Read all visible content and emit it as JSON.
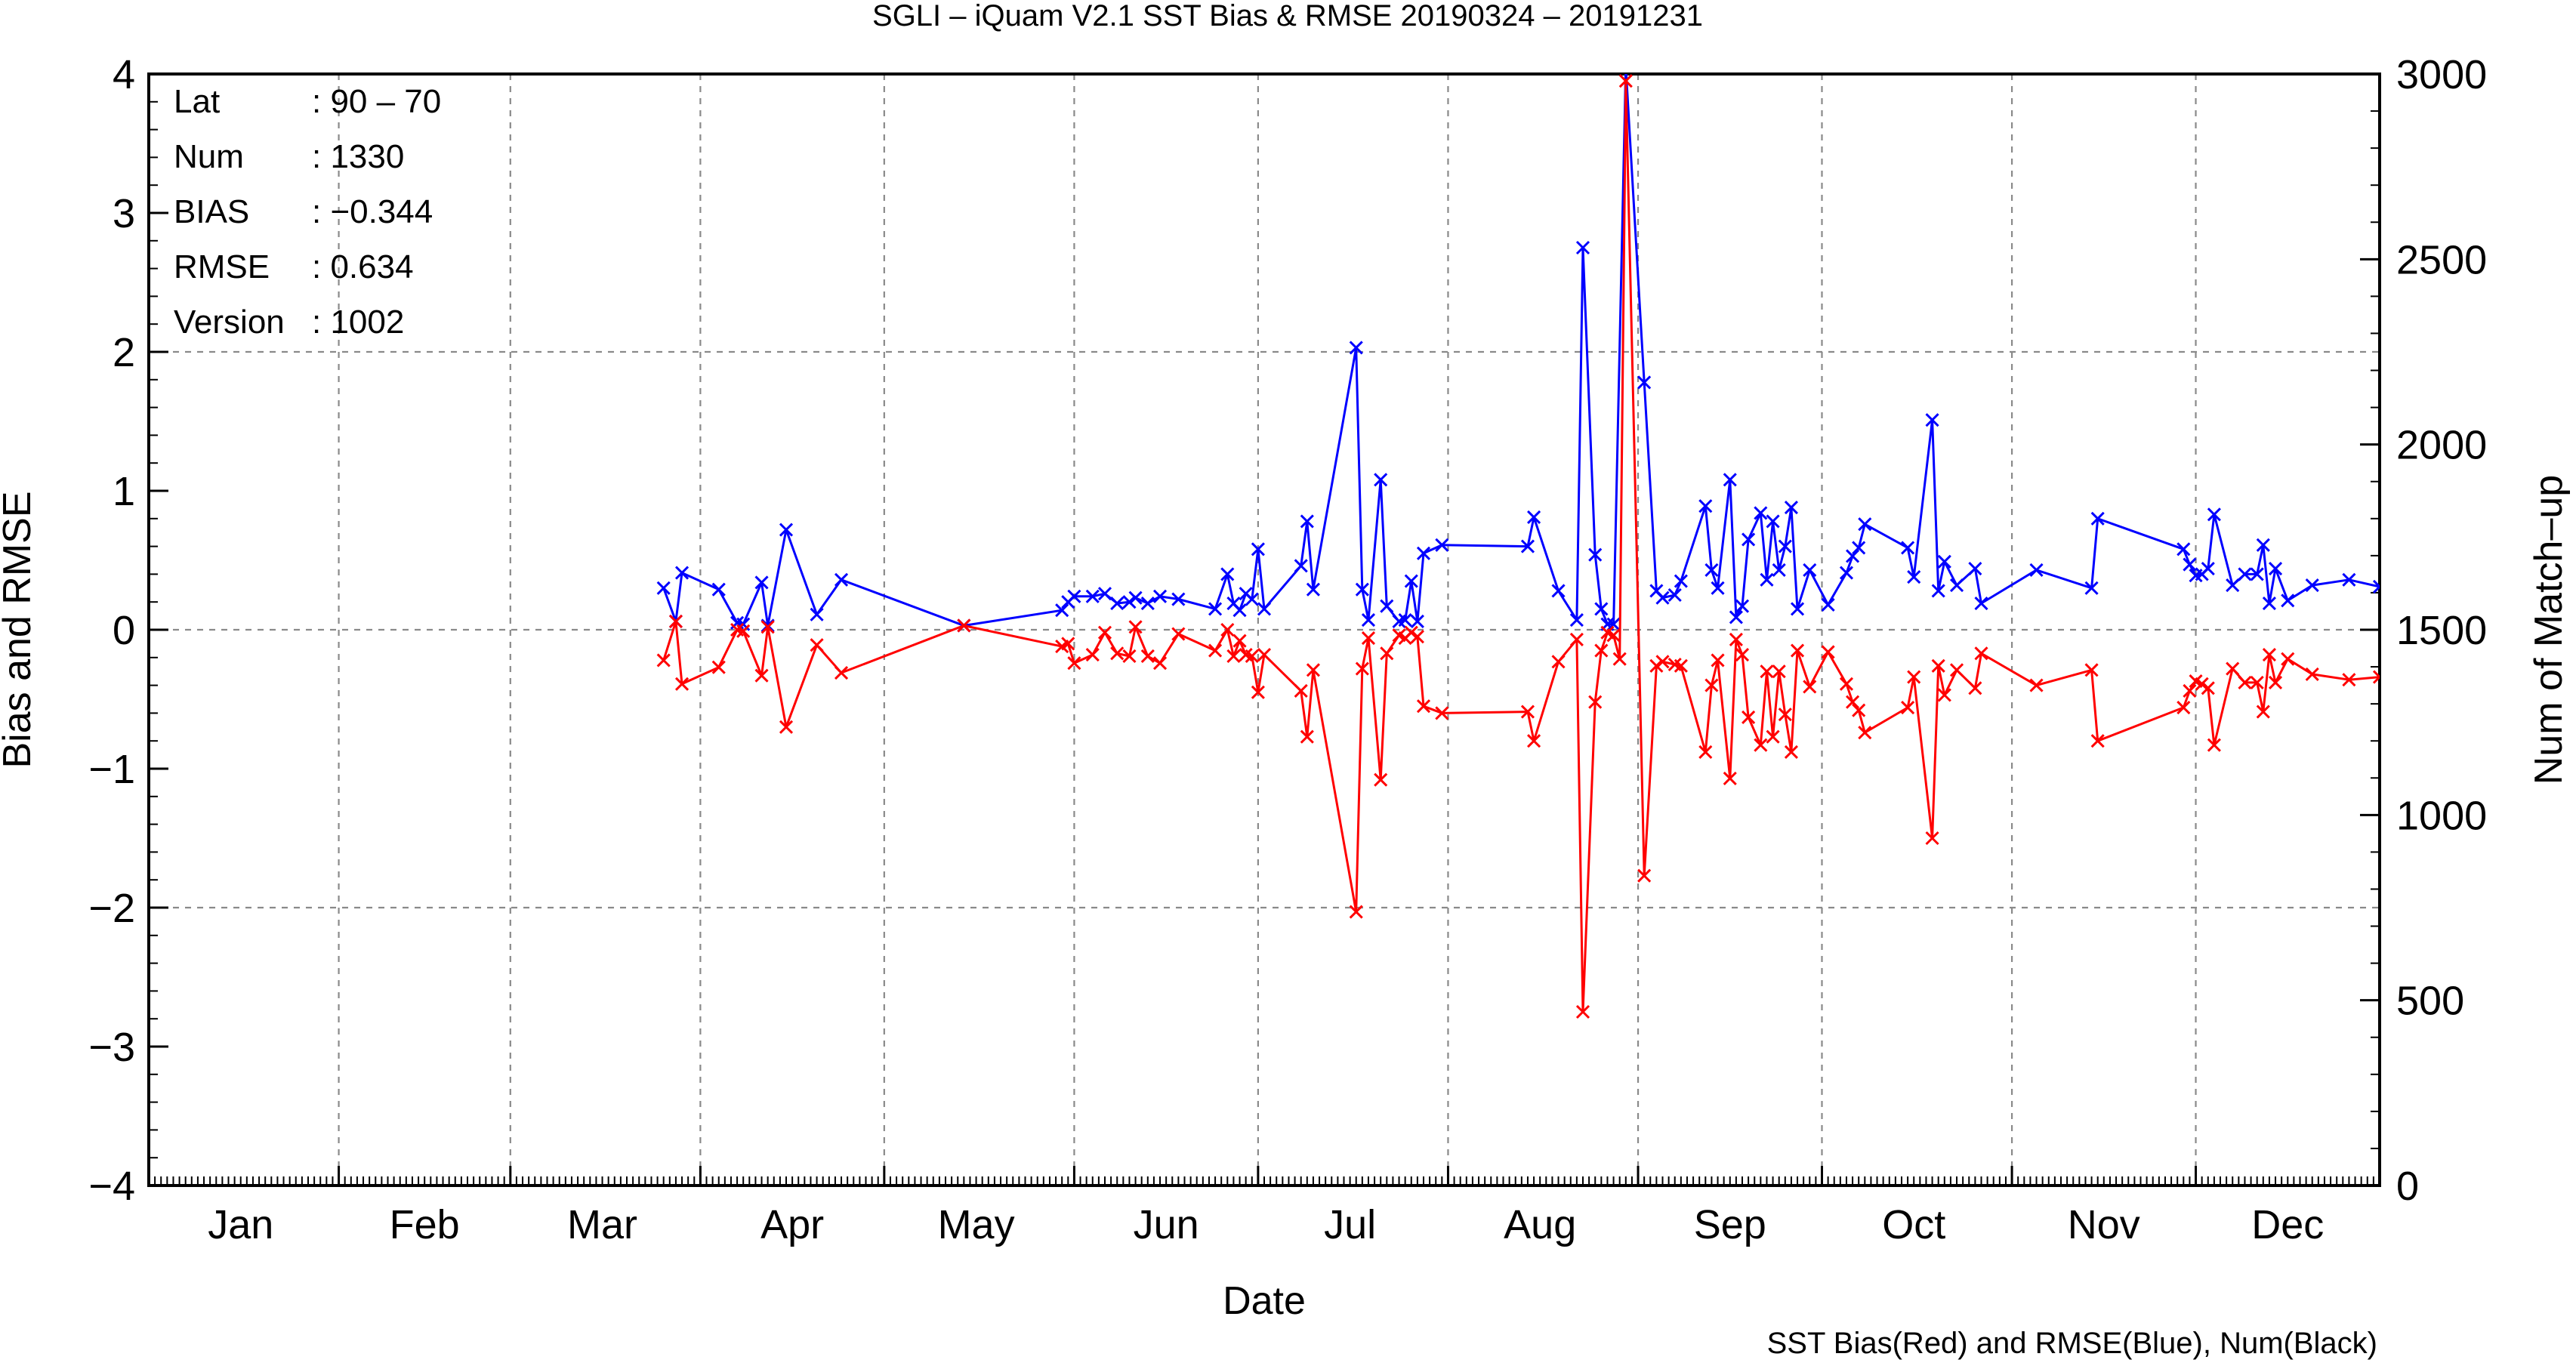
{
  "chart_data": {
    "type": "line",
    "title": "SGLI – iQuam V2.1 SST Bias & RMSE 20190324 – 20191231",
    "xlabel": "Date",
    "ylabel": "Bias and RMSE",
    "y2label": "Num of Match–up",
    "footer": "SST Bias(Red) and RMSE(Blue), Num(Black)",
    "xlim": [
      "2019-01-01",
      "2019-12-31"
    ],
    "ylim": [
      -4,
      4
    ],
    "y2lim": [
      0,
      3000
    ],
    "month_ticks": [
      {
        "date": "2019-01-01",
        "label": ""
      },
      {
        "date": "2019-02-01",
        "label": ""
      },
      {
        "date": "2019-03-01",
        "label": ""
      },
      {
        "date": "2019-04-01",
        "label": ""
      },
      {
        "date": "2019-05-01",
        "label": ""
      },
      {
        "date": "2019-06-01",
        "label": ""
      },
      {
        "date": "2019-07-01",
        "label": ""
      },
      {
        "date": "2019-08-01",
        "label": ""
      },
      {
        "date": "2019-09-01",
        "label": ""
      },
      {
        "date": "2019-10-01",
        "label": ""
      },
      {
        "date": "2019-11-01",
        "label": ""
      },
      {
        "date": "2019-12-01",
        "label": ""
      }
    ],
    "month_labels": [
      {
        "date": "2019-01-16",
        "label": "Jan"
      },
      {
        "date": "2019-02-15",
        "label": "Feb"
      },
      {
        "date": "2019-03-16",
        "label": "Mar"
      },
      {
        "date": "2019-04-16",
        "label": "Apr"
      },
      {
        "date": "2019-05-16",
        "label": "May"
      },
      {
        "date": "2019-06-16",
        "label": "Jun"
      },
      {
        "date": "2019-07-16",
        "label": "Jul"
      },
      {
        "date": "2019-08-16",
        "label": "Aug"
      },
      {
        "date": "2019-09-16",
        "label": "Sep"
      },
      {
        "date": "2019-10-16",
        "label": "Oct"
      },
      {
        "date": "2019-11-16",
        "label": "Nov"
      },
      {
        "date": "2019-12-16",
        "label": "Dec"
      }
    ],
    "y_ticks": [
      {
        "value": 4,
        "label": "4"
      },
      {
        "value": 3,
        "label": "3"
      },
      {
        "value": 2,
        "label": "2"
      },
      {
        "value": 1,
        "label": "1"
      },
      {
        "value": 0,
        "label": "0"
      },
      {
        "value": -1,
        "label": "−1"
      },
      {
        "value": -2,
        "label": "−2"
      },
      {
        "value": -3,
        "label": "−3"
      },
      {
        "value": -4,
        "label": "−4"
      }
    ],
    "y2_ticks": [
      {
        "value": 3000,
        "label": "3000"
      },
      {
        "value": 2500,
        "label": "2500"
      },
      {
        "value": 2000,
        "label": "2000"
      },
      {
        "value": 1500,
        "label": "1500"
      },
      {
        "value": 1000,
        "label": "1000"
      },
      {
        "value": 500,
        "label": "500"
      },
      {
        "value": 0,
        "label": "0"
      }
    ],
    "grid": true,
    "stats": [
      {
        "label": "Lat",
        "value": ": 90 – 70"
      },
      {
        "label": "Num",
        "value": ": 1330"
      },
      {
        "label": "BIAS",
        "value": ": −0.344"
      },
      {
        "label": "RMSE",
        "value": ": 0.634"
      },
      {
        "label": "Version",
        "value": ": 1002"
      }
    ],
    "series": [
      {
        "name": "RMSE",
        "color": "#0000ff",
        "points": [
          [
            "2019-03-26",
            0.3
          ],
          [
            "2019-03-28",
            0.06
          ],
          [
            "2019-03-29",
            0.41
          ],
          [
            "2019-04-04",
            0.29
          ],
          [
            "2019-04-07",
            0.05
          ],
          [
            "2019-04-08",
            0.04
          ],
          [
            "2019-04-11",
            0.34
          ],
          [
            "2019-04-12",
            0.03
          ],
          [
            "2019-04-15",
            0.72
          ],
          [
            "2019-04-20",
            0.11
          ],
          [
            "2019-04-24",
            0.36
          ],
          [
            "2019-05-14",
            0.03
          ],
          [
            "2019-05-30",
            0.14
          ],
          [
            "2019-05-31",
            0.2
          ],
          [
            "2019-06-01",
            0.24
          ],
          [
            "2019-06-04",
            0.24
          ],
          [
            "2019-06-06",
            0.26
          ],
          [
            "2019-06-08",
            0.19
          ],
          [
            "2019-06-10",
            0.2
          ],
          [
            "2019-06-11",
            0.23
          ],
          [
            "2019-06-13",
            0.19
          ],
          [
            "2019-06-15",
            0.24
          ],
          [
            "2019-06-18",
            0.22
          ],
          [
            "2019-06-24",
            0.15
          ],
          [
            "2019-06-26",
            0.4
          ],
          [
            "2019-06-27",
            0.19
          ],
          [
            "2019-06-28",
            0.14
          ],
          [
            "2019-06-29",
            0.26
          ],
          [
            "2019-06-30",
            0.22
          ],
          [
            "2019-07-01",
            0.58
          ],
          [
            "2019-07-02",
            0.15
          ],
          [
            "2019-07-08",
            0.46
          ],
          [
            "2019-07-09",
            0.78
          ],
          [
            "2019-07-10",
            0.29
          ],
          [
            "2019-07-17",
            2.03
          ],
          [
            "2019-07-18",
            0.29
          ],
          [
            "2019-07-19",
            0.07
          ],
          [
            "2019-07-21",
            1.08
          ],
          [
            "2019-07-22",
            0.17
          ],
          [
            "2019-07-24",
            0.06
          ],
          [
            "2019-07-25",
            0.07
          ],
          [
            "2019-07-26",
            0.35
          ],
          [
            "2019-07-27",
            0.06
          ],
          [
            "2019-07-28",
            0.55
          ],
          [
            "2019-07-31",
            0.61
          ],
          [
            "2019-08-14",
            0.6
          ],
          [
            "2019-08-15",
            0.81
          ],
          [
            "2019-08-19",
            0.28
          ],
          [
            "2019-08-22",
            0.07
          ],
          [
            "2019-08-23",
            2.75
          ],
          [
            "2019-08-25",
            0.54
          ],
          [
            "2019-08-26",
            0.15
          ],
          [
            "2019-08-27",
            0.04
          ],
          [
            "2019-08-28",
            0.04
          ],
          [
            "2019-08-30",
            4.05
          ],
          [
            "2019-09-02",
            1.78
          ],
          [
            "2019-09-04",
            0.28
          ],
          [
            "2019-09-05",
            0.23
          ],
          [
            "2019-09-07",
            0.25
          ],
          [
            "2019-09-08",
            0.35
          ],
          [
            "2019-09-12",
            0.89
          ],
          [
            "2019-09-13",
            0.43
          ],
          [
            "2019-09-14",
            0.3
          ],
          [
            "2019-09-16",
            1.08
          ],
          [
            "2019-09-17",
            0.09
          ],
          [
            "2019-09-18",
            0.17
          ],
          [
            "2019-09-19",
            0.65
          ],
          [
            "2019-09-21",
            0.84
          ],
          [
            "2019-09-22",
            0.36
          ],
          [
            "2019-09-23",
            0.78
          ],
          [
            "2019-09-24",
            0.43
          ],
          [
            "2019-09-25",
            0.6
          ],
          [
            "2019-09-26",
            0.88
          ],
          [
            "2019-09-27",
            0.15
          ],
          [
            "2019-09-29",
            0.43
          ],
          [
            "2019-10-02",
            0.18
          ],
          [
            "2019-10-05",
            0.41
          ],
          [
            "2019-10-06",
            0.53
          ],
          [
            "2019-10-07",
            0.59
          ],
          [
            "2019-10-08",
            0.76
          ],
          [
            "2019-10-15",
            0.59
          ],
          [
            "2019-10-16",
            0.38
          ],
          [
            "2019-10-19",
            1.51
          ],
          [
            "2019-10-20",
            0.28
          ],
          [
            "2019-10-21",
            0.49
          ],
          [
            "2019-10-23",
            0.32
          ],
          [
            "2019-10-26",
            0.44
          ],
          [
            "2019-10-27",
            0.19
          ],
          [
            "2019-11-05",
            0.43
          ],
          [
            "2019-11-14",
            0.3
          ],
          [
            "2019-11-15",
            0.8
          ],
          [
            "2019-11-29",
            0.58
          ],
          [
            "2019-11-30",
            0.47
          ],
          [
            "2019-12-01",
            0.39
          ],
          [
            "2019-12-02",
            0.4
          ],
          [
            "2019-12-03",
            0.44
          ],
          [
            "2019-12-04",
            0.83
          ],
          [
            "2019-12-07",
            0.32
          ],
          [
            "2019-12-09",
            0.4
          ],
          [
            "2019-12-11",
            0.4
          ],
          [
            "2019-12-12",
            0.61
          ],
          [
            "2019-12-13",
            0.19
          ],
          [
            "2019-12-14",
            0.44
          ],
          [
            "2019-12-16",
            0.21
          ],
          [
            "2019-12-20",
            0.32
          ],
          [
            "2019-12-26",
            0.36
          ],
          [
            "2019-12-31",
            0.31
          ]
        ]
      },
      {
        "name": "Bias",
        "color": "#ff0000",
        "points": [
          [
            "2019-03-26",
            -0.22
          ],
          [
            "2019-03-28",
            0.06
          ],
          [
            "2019-03-29",
            -0.39
          ],
          [
            "2019-04-04",
            -0.27
          ],
          [
            "2019-04-07",
            0.0
          ],
          [
            "2019-04-08",
            -0.01
          ],
          [
            "2019-04-11",
            -0.33
          ],
          [
            "2019-04-12",
            0.02
          ],
          [
            "2019-04-15",
            -0.7
          ],
          [
            "2019-04-20",
            -0.11
          ],
          [
            "2019-04-24",
            -0.31
          ],
          [
            "2019-05-14",
            0.03
          ],
          [
            "2019-05-30",
            -0.12
          ],
          [
            "2019-05-31",
            -0.1
          ],
          [
            "2019-06-01",
            -0.24
          ],
          [
            "2019-06-04",
            -0.18
          ],
          [
            "2019-06-06",
            -0.02
          ],
          [
            "2019-06-08",
            -0.17
          ],
          [
            "2019-06-10",
            -0.19
          ],
          [
            "2019-06-11",
            0.02
          ],
          [
            "2019-06-13",
            -0.19
          ],
          [
            "2019-06-15",
            -0.24
          ],
          [
            "2019-06-18",
            -0.03
          ],
          [
            "2019-06-24",
            -0.15
          ],
          [
            "2019-06-26",
            0.0
          ],
          [
            "2019-06-27",
            -0.19
          ],
          [
            "2019-06-28",
            -0.08
          ],
          [
            "2019-06-29",
            -0.18
          ],
          [
            "2019-06-30",
            -0.19
          ],
          [
            "2019-07-01",
            -0.45
          ],
          [
            "2019-07-02",
            -0.18
          ],
          [
            "2019-07-08",
            -0.44
          ],
          [
            "2019-07-09",
            -0.77
          ],
          [
            "2019-07-10",
            -0.29
          ],
          [
            "2019-07-17",
            -2.03
          ],
          [
            "2019-07-18",
            -0.28
          ],
          [
            "2019-07-19",
            -0.06
          ],
          [
            "2019-07-21",
            -1.08
          ],
          [
            "2019-07-22",
            -0.17
          ],
          [
            "2019-07-24",
            -0.04
          ],
          [
            "2019-07-25",
            -0.06
          ],
          [
            "2019-07-26",
            -0.02
          ],
          [
            "2019-07-27",
            -0.05
          ],
          [
            "2019-07-28",
            -0.55
          ],
          [
            "2019-07-31",
            -0.6
          ],
          [
            "2019-08-14",
            -0.59
          ],
          [
            "2019-08-15",
            -0.8
          ],
          [
            "2019-08-19",
            -0.23
          ],
          [
            "2019-08-22",
            -0.07
          ],
          [
            "2019-08-23",
            -2.75
          ],
          [
            "2019-08-25",
            -0.52
          ],
          [
            "2019-08-26",
            -0.15
          ],
          [
            "2019-08-27",
            -0.02
          ],
          [
            "2019-08-28",
            -0.04
          ],
          [
            "2019-08-29",
            -0.21
          ],
          [
            "2019-08-30",
            3.95
          ],
          [
            "2019-09-02",
            -1.77
          ],
          [
            "2019-09-04",
            -0.26
          ],
          [
            "2019-09-05",
            -0.23
          ],
          [
            "2019-09-07",
            -0.25
          ],
          [
            "2019-09-08",
            -0.26
          ],
          [
            "2019-09-12",
            -0.88
          ],
          [
            "2019-09-13",
            -0.4
          ],
          [
            "2019-09-14",
            -0.22
          ],
          [
            "2019-09-16",
            -1.07
          ],
          [
            "2019-09-17",
            -0.07
          ],
          [
            "2019-09-18",
            -0.18
          ],
          [
            "2019-09-19",
            -0.63
          ],
          [
            "2019-09-21",
            -0.83
          ],
          [
            "2019-09-22",
            -0.3
          ],
          [
            "2019-09-23",
            -0.77
          ],
          [
            "2019-09-24",
            -0.3
          ],
          [
            "2019-09-25",
            -0.61
          ],
          [
            "2019-09-26",
            -0.88
          ],
          [
            "2019-09-27",
            -0.15
          ],
          [
            "2019-09-29",
            -0.41
          ],
          [
            "2019-10-02",
            -0.16
          ],
          [
            "2019-10-05",
            -0.39
          ],
          [
            "2019-10-06",
            -0.52
          ],
          [
            "2019-10-07",
            -0.58
          ],
          [
            "2019-10-08",
            -0.74
          ],
          [
            "2019-10-15",
            -0.56
          ],
          [
            "2019-10-16",
            -0.34
          ],
          [
            "2019-10-19",
            -1.5
          ],
          [
            "2019-10-20",
            -0.26
          ],
          [
            "2019-10-21",
            -0.47
          ],
          [
            "2019-10-23",
            -0.29
          ],
          [
            "2019-10-26",
            -0.42
          ],
          [
            "2019-10-27",
            -0.17
          ],
          [
            "2019-11-05",
            -0.4
          ],
          [
            "2019-11-14",
            -0.29
          ],
          [
            "2019-11-15",
            -0.8
          ],
          [
            "2019-11-29",
            -0.56
          ],
          [
            "2019-11-30",
            -0.44
          ],
          [
            "2019-12-01",
            -0.37
          ],
          [
            "2019-12-02",
            -0.39
          ],
          [
            "2019-12-03",
            -0.42
          ],
          [
            "2019-12-04",
            -0.83
          ],
          [
            "2019-12-07",
            -0.28
          ],
          [
            "2019-12-09",
            -0.38
          ],
          [
            "2019-12-11",
            -0.38
          ],
          [
            "2019-12-12",
            -0.59
          ],
          [
            "2019-12-13",
            -0.18
          ],
          [
            "2019-12-14",
            -0.38
          ],
          [
            "2019-12-16",
            -0.21
          ],
          [
            "2019-12-20",
            -0.32
          ],
          [
            "2019-12-26",
            -0.36
          ],
          [
            "2019-12-31",
            -0.34
          ]
        ]
      }
    ]
  }
}
